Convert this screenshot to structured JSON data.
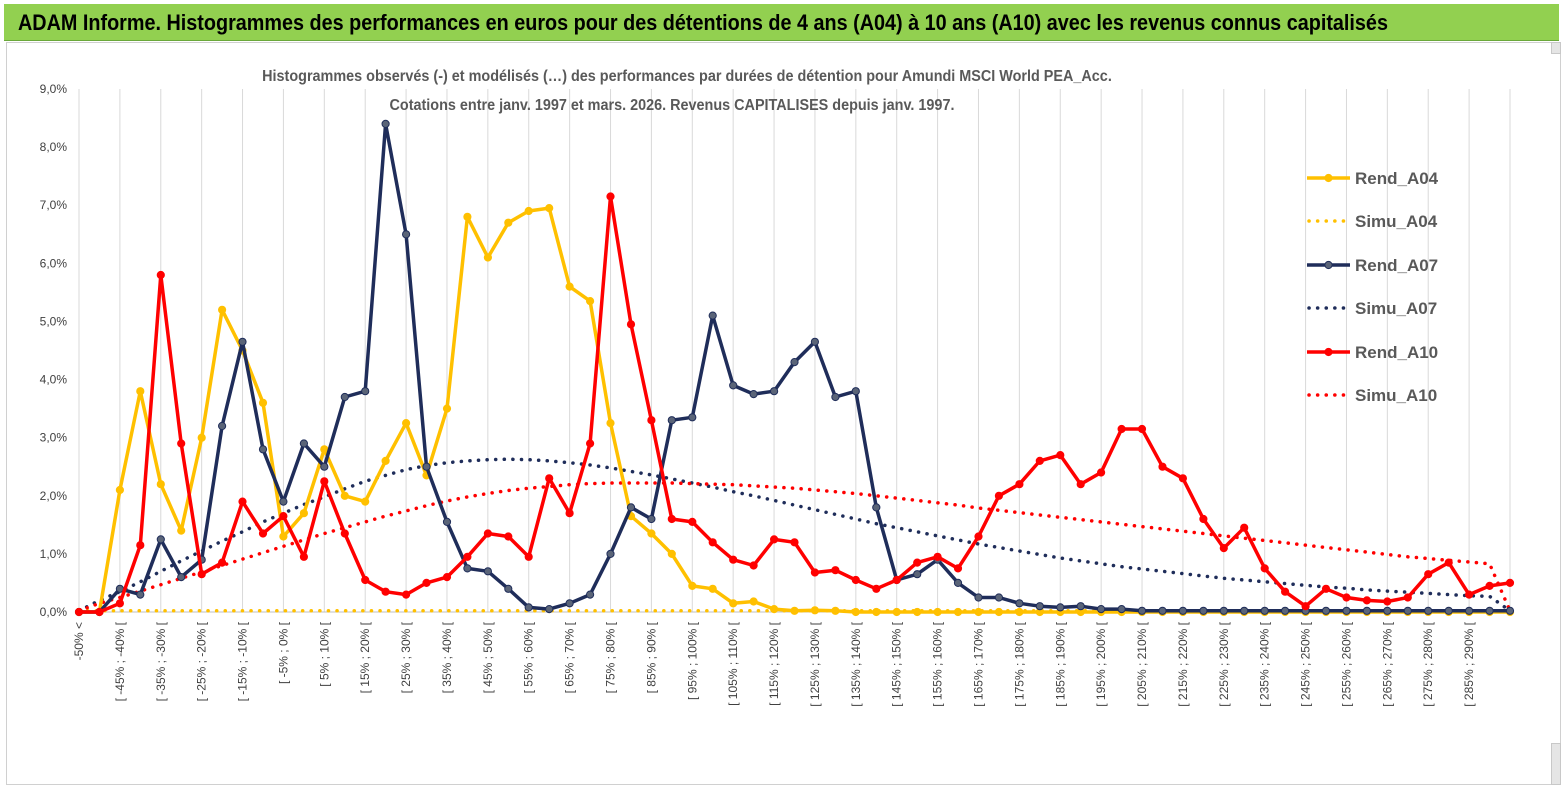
{
  "banner": {
    "title": "ADAM Informe. Histogrammes des performances en euros pour des détentions de 4 ans (A04) à 10 ans (A10) avec les revenus connus capitalisés",
    "color": "#92d050"
  },
  "chart_data": {
    "type": "line",
    "title_line1": "Histogrammes observés (-) et modélisés (…)  des performances par durées de détention pour Amundi MSCI World PEA_Acc.",
    "title_line2": "Cotations entre janv. 1997 et mars. 2026. Revenus CAPITALISES depuis janv. 1997.",
    "xlabel": "",
    "ylabel": "",
    "ylim": [
      0,
      9
    ],
    "y_ticks": [
      "0,0%",
      "1,0%",
      "2,0%",
      "3,0%",
      "4,0%",
      "5,0%",
      "6,0%",
      "7,0%",
      "8,0%",
      "9,0%"
    ],
    "grid": "vertical",
    "legend_position": "right",
    "categories": [
      "-50% <",
      "[ -50% ; -45% [",
      "[ -45% ; -40% [",
      "[ -40% ; -35% [",
      "[ -35% ; -30% [",
      "[ -30% ; -25% [",
      "[ -25% ; -20% [",
      "[ -20% ; -15% [",
      "[ -15% ; -10% [",
      "[ -10% ; -5% [",
      "[ -5% ; 0% [",
      "[ 0% ; 5% [",
      "[ 5% ; 10% [",
      "[ 10% ; 15% [",
      "[ 15% ; 20% [",
      "[ 20% ; 25% [",
      "[ 25% ; 30% [",
      "[ 30% ; 35% [",
      "[ 35% ; 40% [",
      "[ 40% ; 45% [",
      "[ 45% ; 50% [",
      "[ 50% ; 55% [",
      "[ 55% ; 60% [",
      "[ 60% ; 65% [",
      "[ 65% ; 70% [",
      "[ 70% ; 75% [",
      "[ 75% ; 80% [",
      "[ 80% ; 85% [",
      "[ 85% ; 90% [",
      "[ 90% ; 95% [",
      "[ 95% ; 100% [",
      "[ 100% ; 105% [",
      "[ 105% ; 110% [",
      "[ 110% ; 115% [",
      "[ 115% ; 120% [",
      "[ 120% ; 125% [",
      "[ 125% ; 130% [",
      "[ 130% ; 135% [",
      "[ 135% ; 140% [",
      "[ 140% ; 145% [",
      "[ 145% ; 150% [",
      "[ 150% ; 155% [",
      "[ 155% ; 160% [",
      "[ 160% ; 165% [",
      "[ 165% ; 170% [",
      "[ 170% ; 175% [",
      "[ 175% ; 180% [",
      "[ 180% ; 185% [",
      "[ 185% ; 190% [",
      "[ 190% ; 195% [",
      "[ 195% ; 200% [",
      "[ 200% ; 205% [",
      "[ 205% ; 210% [",
      "[ 210% ; 215% [",
      "[ 215% ; 220% [",
      "[ 220% ; 225% [",
      "[ 225% ; 230% [",
      "[ 230% ; 235% [",
      "[ 235% ; 240% [",
      "[ 240% ; 245% [",
      "[ 245% ; 250% [",
      "[ 250% ; 255% [",
      "[ 255% ; 260% [",
      "[ 260% ; 265% [",
      "[ 265% ; 270% [",
      "[ 270% ; 275% [",
      "[ 275% ; 280% [",
      "[ 280% ; 285% [",
      "[ 285% ; 290% [",
      "[ 290% ; 295% [",
      "[ 295% ; 300% ["
    ],
    "shown_tick_labels": [
      "-50% <",
      "[ -45% ; -40% [",
      "[ -35% ; -30% [",
      "[ -25% ; -20% [",
      "[ -15% ; -10% [",
      "[ -5% ; 0% [",
      "[ 5% ; 10% [",
      "[ 15% ; 20% [",
      "[ 25% ; 30% [",
      "[ 35% ; 40% [",
      "[ 45% ; 50% [",
      "[ 55% ; 60% [",
      "[ 65% ; 70% [",
      "[ 75% ; 80% [",
      "[ 85% ; 90% [",
      "[ 95% ; 100% [",
      "[ 105% ; 110% [",
      "[ 115% ; 120% [",
      "[ 125% ; 130% [",
      "[ 135% ; 140% [",
      "[ 145% ; 150% [",
      "[ 155% ; 160% [",
      "[ 165% ; 170% [",
      "[ 175% ; 180% [",
      "[ 185% ; 190% [",
      "[ 195% ; 200% [",
      "[ 205% ; 210% [",
      "[ 215% ; 220% [",
      "[ 225% ; 230% [",
      "[ 235% ; 240% [",
      "[ 245% ; 250% [",
      "[ 255% ; 260% [",
      "[ 265% ; 270% [",
      "[ 275% ; 280% [",
      "[ 285% ; 290% ["
    ],
    "series": [
      {
        "name": "Rend_A04",
        "color": "#ffc000",
        "style": "solid",
        "values": [
          0,
          0,
          2.1,
          3.8,
          2.2,
          1.4,
          3.0,
          5.2,
          4.5,
          3.6,
          1.3,
          1.7,
          2.8,
          2.0,
          1.9,
          2.6,
          3.25,
          2.35,
          3.5,
          6.8,
          6.1,
          6.7,
          6.9,
          6.95,
          5.6,
          5.35,
          3.25,
          1.65,
          1.35,
          1.0,
          0.45,
          0.4,
          0.15,
          0.18,
          0.05,
          0.02,
          0.03,
          0.02,
          0,
          0,
          0,
          0,
          0,
          0,
          0,
          0,
          0,
          0,
          0,
          0,
          0,
          0,
          0,
          0,
          0,
          0,
          0,
          0,
          0,
          0,
          0,
          0,
          0,
          0,
          0,
          0,
          0,
          0,
          0,
          0,
          0
        ]
      },
      {
        "name": "Simu_A04",
        "color": "#ffc000",
        "style": "dotted",
        "values": [
          0.02,
          0.02,
          0.02,
          0.02,
          0.02,
          0.02,
          0.02,
          0.02,
          0.02,
          0.02,
          0.02,
          0.02,
          0.02,
          0.02,
          0.02,
          0.02,
          0.02,
          0.02,
          0.02,
          0.02,
          0.02,
          0.02,
          0.02,
          0.02,
          0.02,
          0.02,
          0.02,
          0.02,
          0.02,
          0.02,
          0.02,
          0.02,
          0.02,
          0.02,
          0.02,
          0.02,
          0.02,
          0.02,
          0.02,
          0.02,
          0.02,
          0.02,
          0.02,
          0.02,
          0.02,
          0.02,
          0.02,
          0.02,
          0.02,
          0.02,
          0.02,
          0.02,
          0.02,
          0.02,
          0.02,
          0.02,
          0.02,
          0.02,
          0.02,
          0.02,
          0.02,
          0.02,
          0.02,
          0.02,
          0.02,
          0.02,
          0.02,
          0.02,
          0.02,
          0.02,
          0.02
        ]
      },
      {
        "name": "Rend_A07",
        "color": "#1f2d5a",
        "style": "solid",
        "values": [
          0,
          0,
          0.4,
          0.3,
          1.25,
          0.6,
          0.9,
          3.2,
          4.65,
          2.8,
          1.9,
          2.9,
          2.5,
          3.7,
          3.8,
          8.4,
          6.5,
          2.5,
          1.55,
          0.75,
          0.7,
          0.4,
          0.08,
          0.05,
          0.15,
          0.3,
          1.0,
          1.8,
          1.6,
          3.3,
          3.35,
          5.1,
          3.9,
          3.75,
          3.8,
          4.3,
          4.65,
          3.7,
          3.8,
          1.8,
          0.55,
          0.65,
          0.9,
          0.5,
          0.25,
          0.25,
          0.15,
          0.1,
          0.08,
          0.1,
          0.05,
          0.05,
          0.02,
          0.02,
          0.02,
          0.02,
          0.02,
          0.02,
          0.02,
          0.02,
          0.02,
          0.02,
          0.02,
          0.02,
          0.02,
          0.02,
          0.02,
          0.02,
          0.02,
          0.02,
          0.02
        ]
      },
      {
        "name": "Simu_A07",
        "color": "#1f2d5a",
        "style": "dotted",
        "values": [
          0.02,
          0.2,
          0.35,
          0.52,
          0.7,
          0.88,
          1.05,
          1.22,
          1.38,
          1.55,
          1.7,
          1.85,
          1.98,
          2.12,
          2.25,
          2.35,
          2.45,
          2.52,
          2.57,
          2.6,
          2.62,
          2.63,
          2.62,
          2.6,
          2.57,
          2.53,
          2.48,
          2.42,
          2.36,
          2.29,
          2.22,
          2.15,
          2.07,
          2.0,
          1.92,
          1.84,
          1.76,
          1.68,
          1.6,
          1.52,
          1.45,
          1.38,
          1.31,
          1.24,
          1.17,
          1.11,
          1.05,
          0.99,
          0.93,
          0.88,
          0.83,
          0.78,
          0.74,
          0.7,
          0.66,
          0.62,
          0.58,
          0.55,
          0.52,
          0.49,
          0.46,
          0.43,
          0.41,
          0.38,
          0.36,
          0.34,
          0.32,
          0.3,
          0.28,
          0.27,
          0.02
        ]
      },
      {
        "name": "Rend_A10",
        "color": "#ff0000",
        "style": "solid",
        "values": [
          0,
          0,
          0.15,
          1.15,
          5.8,
          2.9,
          0.65,
          0.85,
          1.9,
          1.35,
          1.65,
          0.95,
          2.25,
          1.35,
          0.55,
          0.35,
          0.3,
          0.5,
          0.6,
          0.95,
          1.35,
          1.3,
          0.95,
          2.3,
          1.7,
          2.9,
          7.15,
          4.95,
          3.3,
          1.6,
          1.55,
          1.2,
          0.9,
          0.8,
          1.25,
          1.2,
          0.68,
          0.72,
          0.55,
          0.4,
          0.55,
          0.85,
          0.95,
          0.75,
          1.3,
          2.0,
          2.2,
          2.6,
          2.7,
          2.2,
          2.4,
          3.15,
          3.15,
          2.5,
          2.3,
          1.6,
          1.1,
          1.45,
          0.75,
          0.35,
          0.1,
          0.4,
          0.25,
          0.2,
          0.18,
          0.25,
          0.65,
          0.85,
          0.3,
          0.45,
          0.5
        ]
      },
      {
        "name": "Simu_A10",
        "color": "#ff0000",
        "style": "dotted",
        "values": [
          0.02,
          0.15,
          0.25,
          0.36,
          0.47,
          0.58,
          0.69,
          0.8,
          0.91,
          1.02,
          1.13,
          1.24,
          1.35,
          1.45,
          1.55,
          1.65,
          1.74,
          1.83,
          1.91,
          1.98,
          2.04,
          2.09,
          2.13,
          2.16,
          2.19,
          2.21,
          2.22,
          2.22,
          2.22,
          2.22,
          2.21,
          2.2,
          2.19,
          2.17,
          2.15,
          2.13,
          2.1,
          2.07,
          2.04,
          2.0,
          1.96,
          1.92,
          1.88,
          1.84,
          1.79,
          1.75,
          1.71,
          1.67,
          1.63,
          1.59,
          1.55,
          1.51,
          1.47,
          1.43,
          1.39,
          1.35,
          1.31,
          1.27,
          1.23,
          1.19,
          1.15,
          1.11,
          1.07,
          1.03,
          0.99,
          0.95,
          0.92,
          0.89,
          0.86,
          0.83,
          0.02
        ]
      }
    ]
  }
}
